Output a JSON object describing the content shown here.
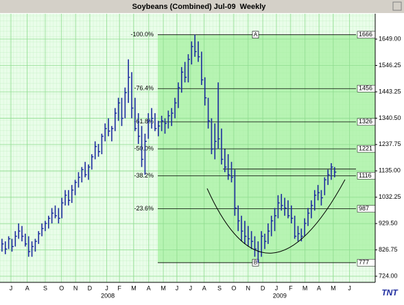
{
  "chart_data": {
    "type": "ohlc",
    "title": "Soybeans (Combined) Jul-09  Weekly",
    "color": "#1c2a9e",
    "ylim": [
      700,
      1748
    ],
    "yticks": [
      {
        "value": 724,
        "label": "724.00"
      },
      826.75,
      {
        "value": 929.5,
        "label": "929.50"
      },
      1032.25,
      {
        "value": 1135,
        "label": "1135.00"
      },
      1237.75,
      {
        "value": 1340.5,
        "label": "1340.50"
      },
      1443.25,
      1546.25,
      {
        "value": 1649,
        "label": "1649.00"
      }
    ],
    "xlim": [
      -0.6,
      112.2
    ],
    "xticks": [
      {
        "value": 2.7,
        "label": "J"
      },
      {
        "value": 7.6,
        "label": "A"
      },
      {
        "value": 13,
        "label": "S"
      },
      {
        "value": 17.9,
        "label": "O"
      },
      {
        "value": 22.1,
        "label": "N"
      },
      {
        "value": 26.4,
        "label": "D"
      },
      {
        "value": 31.5,
        "label": "J"
      },
      {
        "value": 35.3,
        "label": "F"
      },
      {
        "value": 39.6,
        "label": "M"
      },
      {
        "value": 44.1,
        "label": "A"
      },
      {
        "value": 48.5,
        "label": "M"
      },
      {
        "value": 52.6,
        "label": "J"
      },
      {
        "value": 56.7,
        "label": "J"
      },
      {
        "value": 60.8,
        "label": "A"
      },
      {
        "value": 65.4,
        "label": "S"
      },
      {
        "value": 69.7,
        "label": "O"
      },
      {
        "value": 74,
        "label": "N"
      },
      {
        "value": 78.4,
        "label": "D"
      },
      {
        "value": 82.5,
        "label": "J"
      },
      {
        "value": 86.8,
        "label": "F"
      },
      {
        "value": 91.1,
        "label": "M"
      },
      {
        "value": 95.3,
        "label": "A"
      },
      {
        "value": 99.6,
        "label": "M"
      },
      {
        "value": 104.5,
        "label": "J"
      }
    ],
    "year_labels": [
      {
        "value": 31.8,
        "label": "2008"
      },
      {
        "value": 83.5,
        "label": "2009"
      }
    ],
    "grid": true,
    "bars": [
      [
        870,
        820,
        850
      ],
      [
        860,
        810,
        830
      ],
      [
        880,
        830,
        870
      ],
      [
        870,
        820,
        840
      ],
      [
        900,
        840,
        880
      ],
      [
        930,
        870,
        900
      ],
      [
        920,
        860,
        880
      ],
      [
        890,
        840,
        850
      ],
      [
        880,
        800,
        820
      ],
      [
        860,
        800,
        840
      ],
      [
        870,
        820,
        860
      ],
      [
        900,
        850,
        890
      ],
      [
        930,
        880,
        910
      ],
      [
        940,
        900,
        930
      ],
      [
        960,
        910,
        950
      ],
      [
        990,
        930,
        970
      ],
      [
        1000,
        950,
        960
      ],
      [
        990,
        930,
        950
      ],
      [
        1030,
        950,
        1010
      ],
      [
        1060,
        1000,
        1040
      ],
      [
        1060,
        1000,
        1020
      ],
      [
        1080,
        1010,
        1060
      ],
      [
        1100,
        1040,
        1090
      ],
      [
        1130,
        1070,
        1110
      ],
      [
        1150,
        1090,
        1140
      ],
      [
        1170,
        1110,
        1120
      ],
      [
        1160,
        1100,
        1150
      ],
      [
        1200,
        1140,
        1190
      ],
      [
        1250,
        1180,
        1230
      ],
      [
        1240,
        1190,
        1210
      ],
      [
        1280,
        1200,
        1270
      ],
      [
        1320,
        1250,
        1300
      ],
      [
        1340,
        1270,
        1290
      ],
      [
        1310,
        1250,
        1300
      ],
      [
        1380,
        1290,
        1360
      ],
      [
        1420,
        1330,
        1400
      ],
      [
        1420,
        1310,
        1340
      ],
      [
        1460,
        1340,
        1440
      ],
      [
        1570,
        1400,
        1500
      ],
      [
        1520,
        1340,
        1380
      ],
      [
        1420,
        1290,
        1300
      ],
      [
        1360,
        1240,
        1270
      ],
      [
        1310,
        1150,
        1180
      ],
      [
        1280,
        1120,
        1250
      ],
      [
        1360,
        1260,
        1330
      ],
      [
        1380,
        1300,
        1340
      ],
      [
        1360,
        1290,
        1300
      ],
      [
        1330,
        1270,
        1310
      ],
      [
        1350,
        1290,
        1330
      ],
      [
        1340,
        1280,
        1320
      ],
      [
        1370,
        1300,
        1350
      ],
      [
        1380,
        1310,
        1360
      ],
      [
        1420,
        1340,
        1400
      ],
      [
        1480,
        1380,
        1460
      ],
      [
        1540,
        1440,
        1520
      ],
      [
        1560,
        1480,
        1500
      ],
      [
        1590,
        1480,
        1570
      ],
      [
        1640,
        1550,
        1620
      ],
      [
        1666,
        1580,
        1600
      ],
      [
        1640,
        1560,
        1580
      ],
      [
        1600,
        1470,
        1490
      ],
      [
        1500,
        1390,
        1420
      ],
      [
        1420,
        1300,
        1330
      ],
      [
        1340,
        1200,
        1220
      ],
      [
        1320,
        1180,
        1250
      ],
      [
        1480,
        1220,
        1260
      ],
      [
        1300,
        1160,
        1180
      ],
      [
        1220,
        1130,
        1150
      ],
      [
        1200,
        1100,
        1120
      ],
      [
        1170,
        1090,
        1110
      ],
      [
        1140,
        960,
        990
      ],
      [
        1000,
        900,
        940
      ],
      [
        960,
        860,
        900
      ],
      [
        940,
        850,
        880
      ],
      [
        920,
        840,
        870
      ],
      [
        900,
        830,
        860
      ],
      [
        880,
        800,
        830
      ],
      [
        860,
        777,
        820
      ],
      [
        900,
        800,
        880
      ],
      [
        890,
        830,
        860
      ],
      [
        930,
        850,
        900
      ],
      [
        960,
        880,
        940
      ],
      [
        990,
        900,
        960
      ],
      [
        1040,
        950,
        1010
      ],
      [
        1045,
        980,
        1000
      ],
      [
        1030,
        960,
        990
      ],
      [
        1020,
        950,
        960
      ],
      [
        1000,
        930,
        950
      ],
      [
        960,
        870,
        880
      ],
      [
        920,
        860,
        890
      ],
      [
        910,
        860,
        880
      ],
      [
        950,
        880,
        930
      ],
      [
        990,
        920,
        970
      ],
      [
        1020,
        950,
        1000
      ],
      [
        1060,
        980,
        1040
      ],
      [
        1080,
        1020,
        1050
      ],
      [
        1060,
        1000,
        1030
      ],
      [
        1110,
        1040,
        1100
      ],
      [
        1140,
        1080,
        1120
      ],
      [
        1165,
        1100,
        1150
      ],
      [
        1150,
        1110,
        1130
      ]
    ],
    "fib_levels": [
      {
        "pct": "-100.0%",
        "value": 1666,
        "marker": "A"
      },
      {
        "pct": "-76.4%",
        "value": 1456
      },
      {
        "pct": "-61.8%",
        "value": 1326
      },
      {
        "pct": "-50.0%",
        "value": 1221
      },
      {
        "pct": "-38.2%",
        "value": 1116
      },
      {
        "pct": "-23.6%",
        "value": 987
      },
      {
        "value": 777,
        "marker": "B"
      }
    ],
    "hline": 1142,
    "logo": "TNT"
  }
}
